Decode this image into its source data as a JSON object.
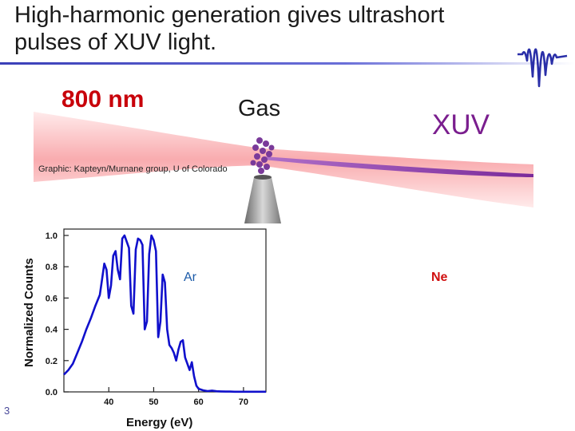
{
  "slide": {
    "title": "High-harmonic generation gives ultrashort pulses of XUV light.",
    "label_800": "800 nm",
    "label_gas": "Gas",
    "label_xuv": "XUV",
    "credit": "Graphic: Kapteyn/Murnane group, U of Colorado",
    "page_number": "3",
    "colors": {
      "laser": "#c8000a",
      "xuv": "#7a1e8e",
      "title_rule": "#3a3fb8",
      "trace": "#1010cc",
      "ne": "#d01010"
    },
    "icons": [
      "pulse-wave-icon",
      "gas-nozzle-icon"
    ]
  },
  "chart_data": {
    "type": "line",
    "title": "",
    "xlabel": "Energy (eV)",
    "ylabel": "Normalized Counts",
    "xlim": [
      30,
      75
    ],
    "ylim": [
      0,
      1.0
    ],
    "xticks": [
      40,
      50,
      60,
      70
    ],
    "yticks": [
      0.0,
      0.2,
      0.4,
      0.6,
      0.8,
      1.0
    ],
    "grid": false,
    "annotations": [
      "Ar",
      "Ne"
    ],
    "series": [
      {
        "name": "Ar",
        "x": [
          30,
          31,
          32,
          33,
          34,
          35,
          36,
          37,
          38,
          38.5,
          39,
          39.5,
          40,
          40.5,
          41,
          41.5,
          42,
          42.5,
          43,
          43.5,
          44,
          44.5,
          45,
          45.5,
          46,
          46.5,
          47,
          47.5,
          48,
          48.5,
          49,
          49.5,
          50,
          50.5,
          51,
          51.5,
          52,
          52.5,
          53,
          53.5,
          54,
          54.5,
          55,
          55.5,
          56,
          56.5,
          57,
          57.5,
          58,
          58.5,
          59,
          59.5,
          60,
          61,
          62,
          63,
          64,
          65,
          66,
          67,
          68,
          69,
          70,
          72,
          75
        ],
        "y": [
          0.11,
          0.14,
          0.18,
          0.25,
          0.32,
          0.4,
          0.47,
          0.55,
          0.62,
          0.72,
          0.82,
          0.78,
          0.6,
          0.68,
          0.87,
          0.9,
          0.78,
          0.72,
          0.98,
          1.0,
          0.96,
          0.92,
          0.55,
          0.5,
          0.91,
          0.98,
          0.97,
          0.94,
          0.4,
          0.45,
          0.88,
          1.0,
          0.97,
          0.9,
          0.35,
          0.45,
          0.75,
          0.7,
          0.4,
          0.3,
          0.28,
          0.25,
          0.2,
          0.27,
          0.32,
          0.33,
          0.22,
          0.18,
          0.14,
          0.19,
          0.1,
          0.04,
          0.02,
          0.01,
          0.005,
          0.008,
          0.004,
          0.003,
          0.002,
          0.002,
          0.001,
          0.001,
          0.001,
          0.001,
          0.001
        ]
      }
    ]
  }
}
